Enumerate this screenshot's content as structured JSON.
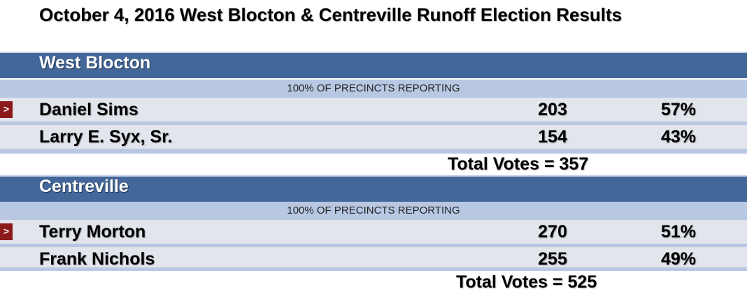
{
  "title": "October 4, 2016 West Blocton & Centreville Runoff Election Results",
  "colors": {
    "header_bg": "#44679a",
    "reporting_bg": "#b8c8e3",
    "row_bg": "#e2e5ec",
    "winner_marker": "#8b1a1a"
  },
  "winner_marker_glyph": ">",
  "races": [
    {
      "name": "West Blocton",
      "reporting": "100% OF PRECINCTS REPORTING",
      "candidates": [
        {
          "name": "Daniel Sims",
          "votes": "203",
          "percent": "57%",
          "winner": true
        },
        {
          "name": "Larry E. Syx, Sr.",
          "votes": "154",
          "percent": "43%",
          "winner": false
        }
      ],
      "total": "Total  Votes  = 357"
    },
    {
      "name": "Centreville",
      "reporting": "100% OF PRECINCTS REPORTING",
      "candidates": [
        {
          "name": "Terry Morton",
          "votes": "270",
          "percent": "51%",
          "winner": true
        },
        {
          "name": "Frank Nichols",
          "votes": "255",
          "percent": "49%",
          "winner": false
        }
      ],
      "total": "Total  Votes = 525"
    }
  ]
}
